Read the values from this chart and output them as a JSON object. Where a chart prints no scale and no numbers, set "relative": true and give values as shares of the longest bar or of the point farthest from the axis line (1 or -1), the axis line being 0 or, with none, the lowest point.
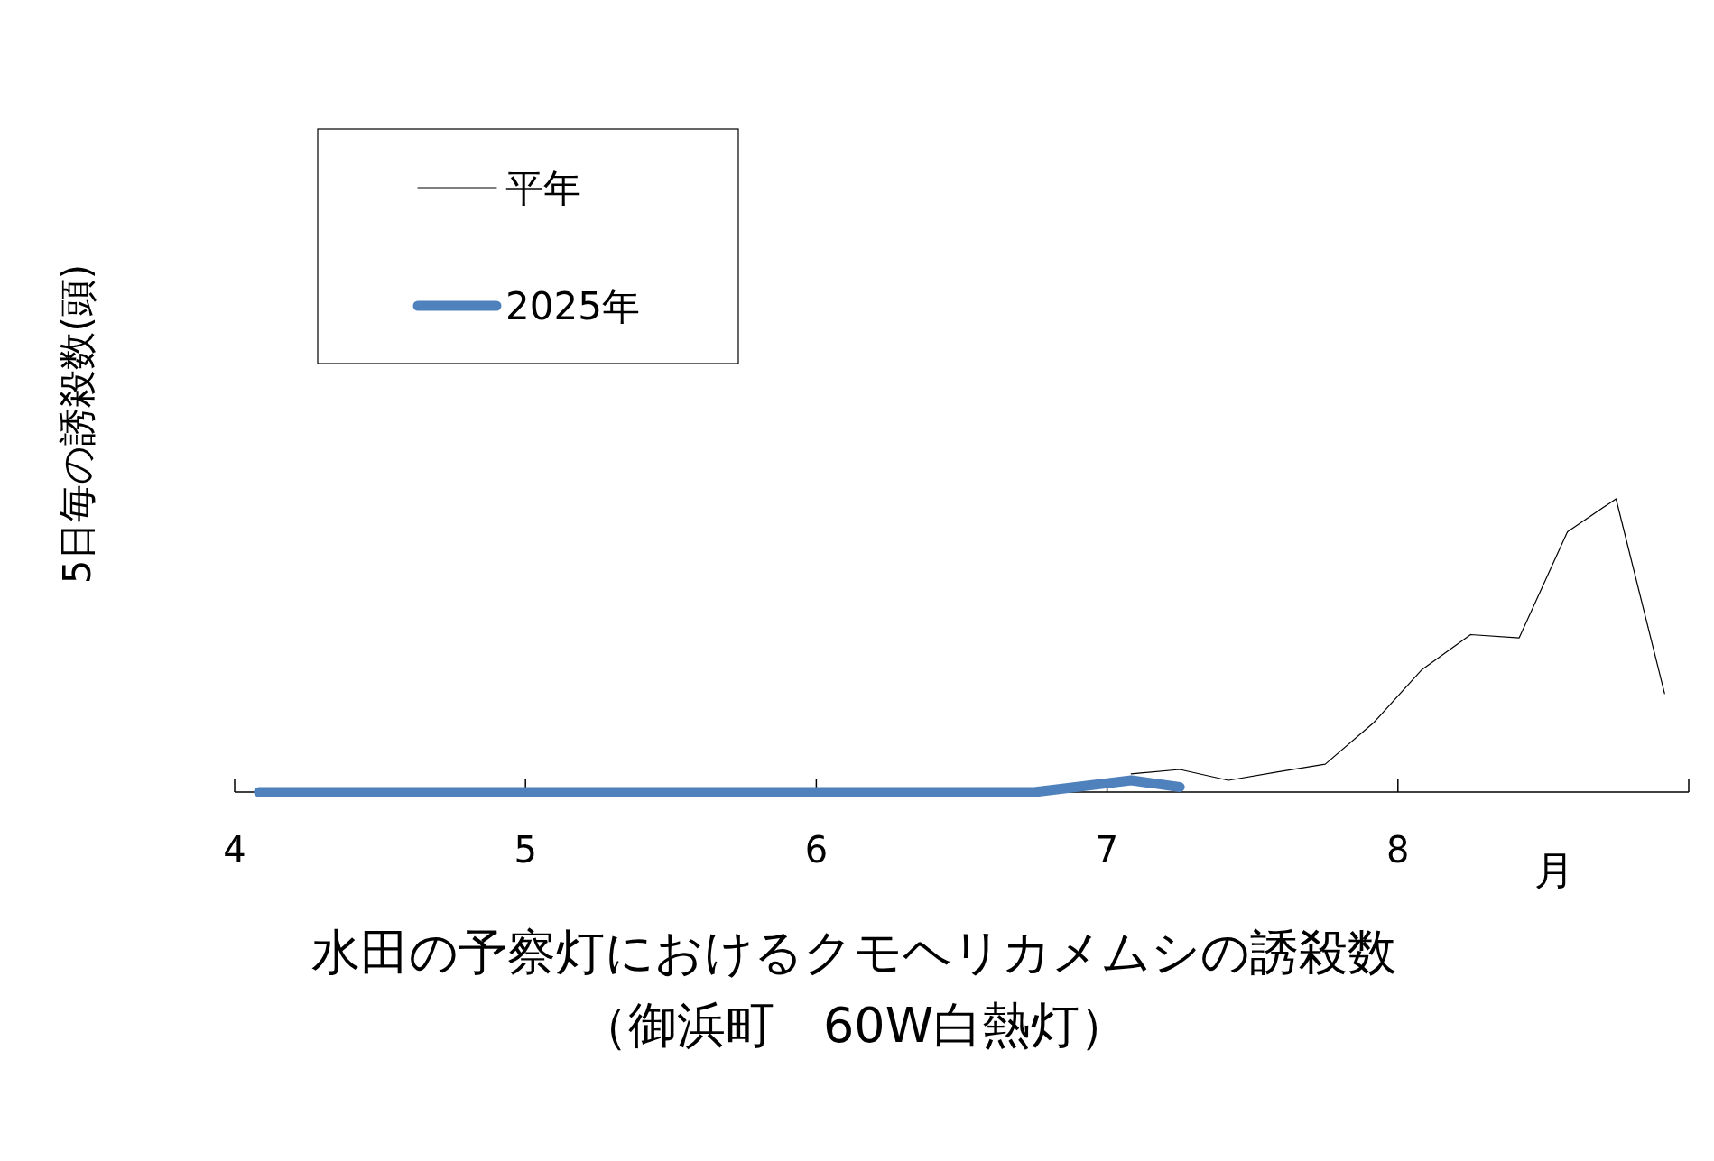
{
  "chart_data": {
    "type": "line",
    "relative": true,
    "title": "水田の予察灯におけるクモヘリカメムシの誘殺数",
    "subtitle": "（御浜町　60W白熱灯）",
    "xlabel": "月",
    "ylabel": "5日毎の誘殺数(頭)",
    "xlim": [
      4,
      9
    ],
    "xticks": [
      4,
      5,
      6,
      7,
      8,
      {
        "value": 9,
        "label": null
      }
    ],
    "legend": "top left",
    "marker": "none",
    "line_style": "solid",
    "x": [
      4.083,
      4.25,
      4.417,
      4.583,
      4.75,
      4.917,
      5.083,
      5.25,
      5.417,
      5.583,
      5.75,
      5.917,
      6.083,
      6.25,
      6.417,
      6.583,
      6.75,
      6.917,
      7.083,
      7.25,
      7.417,
      7.583,
      7.75,
      7.917,
      8.083,
      8.25,
      8.417,
      8.583,
      8.75,
      8.917
    ],
    "series": [
      {
        "name": "平年",
        "color": "#000000",
        "values": [
          null,
          null,
          null,
          null,
          null,
          null,
          null,
          null,
          null,
          null,
          null,
          null,
          null,
          null,
          null,
          null,
          null,
          null,
          0.062,
          0.077,
          0.04,
          0.068,
          0.095,
          0.237,
          0.418,
          0.537,
          0.526,
          0.888,
          1,
          0.336
        ]
      },
      {
        "name": "2025年",
        "color": "#4f81bd",
        "values": [
          0,
          0,
          0,
          0,
          0,
          0,
          0,
          0,
          0,
          0,
          0,
          0,
          0,
          0,
          0,
          0,
          0,
          0.02,
          0.04,
          0.017,
          null,
          null,
          null,
          null,
          null,
          null,
          null,
          null,
          null,
          null
        ]
      }
    ]
  }
}
